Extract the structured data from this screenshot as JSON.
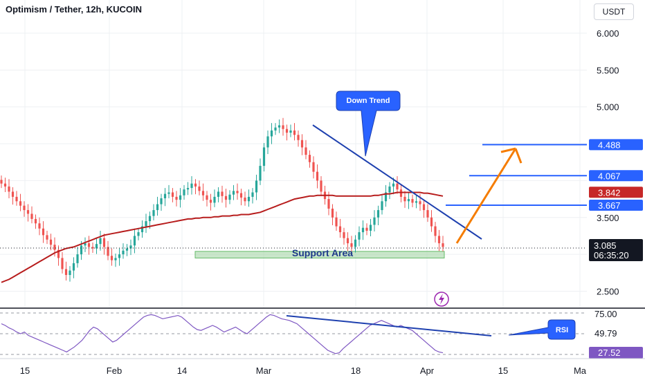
{
  "header": {
    "title": "Optimism / Tether, 12h, KUCOIN",
    "currency": "USDT"
  },
  "annotations": {
    "down_trend": "Down Trend",
    "support_area": "Support Area",
    "rsi_callout": "RSI"
  },
  "colors": {
    "bull": "#26a69a",
    "bear": "#ef5350",
    "ma_line": "#b71c1c",
    "trendline": "#1e40af",
    "level_line": "#2962ff",
    "arrow": "#f57c00",
    "support_fill": "#a5d6a7",
    "rsi_line": "#7e57c2",
    "callout": "#2962ff"
  },
  "chart_data": [
    {
      "type": "candlestick",
      "title": "Optimism / Tether, 12h, KUCOIN",
      "y_unit": "USDT",
      "ylim": [
        2.27,
        6.45
      ],
      "y_ticks": [
        "6.000",
        "5.500",
        "5.000",
        "3.500",
        "2.500"
      ],
      "x_ticks": [
        "15",
        "Feb",
        "14",
        "Mar",
        "18",
        "Apr",
        "15",
        "Ma"
      ],
      "grid": true,
      "current_price": "3.085",
      "countdown": "06:35:20",
      "price_tags": [
        {
          "label": "4.488",
          "value": 4.488,
          "color": "#2962ff"
        },
        {
          "label": "4.067",
          "value": 4.067,
          "color": "#2962ff"
        },
        {
          "label": "3.842",
          "value": 3.842,
          "color": "#c62828"
        },
        {
          "label": "3.667",
          "value": 3.667,
          "color": "#2962ff"
        }
      ],
      "horizontal_levels": [
        4.488,
        4.067,
        3.667
      ],
      "support_area": [
        2.95,
        3.04
      ],
      "close_series": [
        3.96,
        3.92,
        3.85,
        3.78,
        3.72,
        3.66,
        3.6,
        3.55,
        3.48,
        3.42,
        3.35,
        3.26,
        3.2,
        3.13,
        3.06,
        2.95,
        2.8,
        2.72,
        2.78,
        2.88,
        3.0,
        3.12,
        3.15,
        3.1,
        3.08,
        3.14,
        3.22,
        3.1,
        2.98,
        2.92,
        2.95,
        3.0,
        3.05,
        3.08,
        3.12,
        3.25,
        3.3,
        3.38,
        3.45,
        3.52,
        3.6,
        3.68,
        3.76,
        3.82,
        3.84,
        3.78,
        3.74,
        3.8,
        3.88,
        3.9,
        3.96,
        3.92,
        3.86,
        3.8,
        3.74,
        3.7,
        3.78,
        3.85,
        3.79,
        3.74,
        3.81,
        3.86,
        3.83,
        3.77,
        3.72,
        3.78,
        3.84,
        4.0,
        4.2,
        4.45,
        4.6,
        4.68,
        4.72,
        4.75,
        4.7,
        4.65,
        4.68,
        4.62,
        4.55,
        4.45,
        4.35,
        4.25,
        4.12,
        4.0,
        3.85,
        3.75,
        3.62,
        3.5,
        3.38,
        3.3,
        3.22,
        3.15,
        3.1,
        3.2,
        3.3,
        3.36,
        3.32,
        3.4,
        3.5,
        3.6,
        3.72,
        3.84,
        3.92,
        3.96,
        3.88,
        3.78,
        3.72,
        3.75,
        3.7,
        3.72,
        3.68,
        3.6,
        3.5,
        3.38,
        3.25,
        3.15,
        3.1
      ],
      "ma_series": [
        2.62,
        2.64,
        2.66,
        2.69,
        2.72,
        2.75,
        2.78,
        2.81,
        2.84,
        2.87,
        2.9,
        2.93,
        2.96,
        2.99,
        3.02,
        3.04,
        3.06,
        3.08,
        3.09,
        3.1,
        3.12,
        3.14,
        3.16,
        3.18,
        3.2,
        3.22,
        3.24,
        3.26,
        3.27,
        3.28,
        3.29,
        3.3,
        3.31,
        3.32,
        3.33,
        3.34,
        3.35,
        3.36,
        3.37,
        3.38,
        3.39,
        3.4,
        3.41,
        3.42,
        3.43,
        3.44,
        3.45,
        3.46,
        3.47,
        3.48,
        3.48,
        3.49,
        3.49,
        3.5,
        3.5,
        3.5,
        3.51,
        3.51,
        3.52,
        3.52,
        3.52,
        3.53,
        3.53,
        3.54,
        3.54,
        3.54,
        3.55,
        3.56,
        3.57,
        3.59,
        3.61,
        3.63,
        3.65,
        3.67,
        3.69,
        3.71,
        3.73,
        3.75,
        3.76,
        3.77,
        3.78,
        3.79,
        3.79,
        3.8,
        3.8,
        3.8,
        3.8,
        3.8,
        3.79,
        3.79,
        3.79,
        3.79,
        3.79,
        3.79,
        3.79,
        3.79,
        3.79,
        3.79,
        3.8,
        3.8,
        3.81,
        3.82,
        3.82,
        3.83,
        3.84,
        3.84,
        3.84,
        3.84,
        3.84,
        3.84,
        3.84,
        3.83,
        3.83,
        3.82,
        3.81,
        3.8,
        3.79
      ]
    },
    {
      "type": "line",
      "title": "RSI",
      "ylim": [
        20,
        80
      ],
      "y_ticks": [
        "75.00"
      ],
      "current_value": "49.79",
      "lower_tag": "27.52",
      "lower_tag_value": 27.52,
      "guide_levels": [
        75,
        50,
        25
      ],
      "values": [
        62,
        60,
        57,
        55,
        52,
        50,
        52,
        48,
        46,
        44,
        42,
        40,
        38,
        36,
        34,
        32,
        30,
        28,
        31,
        34,
        38,
        42,
        48,
        54,
        58,
        56,
        52,
        48,
        44,
        40,
        42,
        46,
        50,
        54,
        58,
        62,
        66,
        70,
        72,
        73,
        72,
        70,
        68,
        69,
        70,
        71,
        72,
        70,
        66,
        62,
        58,
        55,
        54,
        56,
        58,
        60,
        58,
        55,
        52,
        54,
        56,
        58,
        55,
        52,
        50,
        54,
        58,
        62,
        66,
        70,
        73,
        72,
        70,
        68,
        67,
        66,
        64,
        62,
        58,
        54,
        50,
        46,
        42,
        38,
        34,
        30,
        28,
        26,
        27,
        32,
        36,
        40,
        44,
        48,
        52,
        56,
        60,
        62,
        64,
        66,
        64,
        62,
        60,
        58,
        60,
        58,
        56,
        54,
        50,
        46,
        42,
        38,
        34,
        30,
        28,
        27
      ]
    }
  ]
}
